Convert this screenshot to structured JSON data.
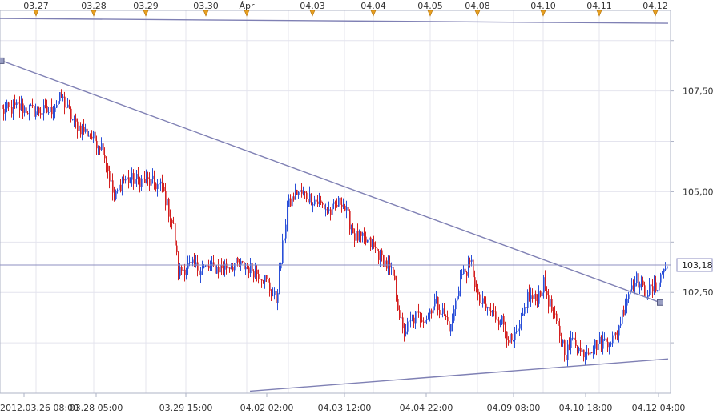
{
  "chart_data": {
    "type": "candlestick",
    "title": "",
    "xlabel": "",
    "ylabel": "",
    "ylim": [
      100.0,
      109.5
    ],
    "colors": {
      "up": "#2a4fd8",
      "down": "#d42020",
      "trendline": "#7f80b4",
      "grid": "#e4e4ee",
      "axis": "#aeb3c6",
      "last_price_line": "#8d8fc0"
    },
    "y_ticks": [
      {
        "value": 107.5,
        "label": "107,50"
      },
      {
        "value": 105.0,
        "label": "105,00"
      },
      {
        "value": 102.5,
        "label": "102,50"
      }
    ],
    "top_date_labels": [
      "03.27",
      "03.28",
      "03.29",
      "03.30",
      "Ápr",
      "04.03",
      "04.04",
      "04.05",
      "04.08",
      "04.10",
      "04.11",
      "04.12"
    ],
    "bottom_time_labels": [
      "2012.03.26 08:00",
      "03.28 05:00",
      "03.29 15:00",
      "04.02 02:00",
      "04.03 12:00",
      "04.04 22:00",
      "04.09 08:00",
      "04.10 18:00",
      "04.12 04:00"
    ],
    "last_price": {
      "value": 103.18,
      "label": "103,18"
    },
    "anchors": [
      {
        "n": 0,
        "v": 107.0
      },
      {
        "n": 10,
        "v": 107.1
      },
      {
        "n": 20,
        "v": 107.0
      },
      {
        "n": 30,
        "v": 107.0
      },
      {
        "n": 37,
        "v": 107.35
      },
      {
        "n": 45,
        "v": 106.7
      },
      {
        "n": 55,
        "v": 106.4
      },
      {
        "n": 63,
        "v": 106.1
      },
      {
        "n": 70,
        "v": 104.8
      },
      {
        "n": 75,
        "v": 105.3
      },
      {
        "n": 85,
        "v": 105.3
      },
      {
        "n": 95,
        "v": 105.2
      },
      {
        "n": 100,
        "v": 105.1
      },
      {
        "n": 107,
        "v": 104.1
      },
      {
        "n": 110,
        "v": 103.0
      },
      {
        "n": 115,
        "v": 103.15
      },
      {
        "n": 125,
        "v": 103.1
      },
      {
        "n": 135,
        "v": 103.1
      },
      {
        "n": 145,
        "v": 103.2
      },
      {
        "n": 155,
        "v": 103.1
      },
      {
        "n": 163,
        "v": 102.9
      },
      {
        "n": 171,
        "v": 102.3
      },
      {
        "n": 178,
        "v": 104.6
      },
      {
        "n": 184,
        "v": 105.0
      },
      {
        "n": 195,
        "v": 104.8
      },
      {
        "n": 205,
        "v": 104.5
      },
      {
        "n": 212,
        "v": 104.8
      },
      {
        "n": 220,
        "v": 103.9
      },
      {
        "n": 230,
        "v": 103.7
      },
      {
        "n": 238,
        "v": 103.3
      },
      {
        "n": 244,
        "v": 102.9
      },
      {
        "n": 250,
        "v": 101.5
      },
      {
        "n": 258,
        "v": 101.9
      },
      {
        "n": 265,
        "v": 101.9
      },
      {
        "n": 270,
        "v": 102.3
      },
      {
        "n": 275,
        "v": 102.0
      },
      {
        "n": 280,
        "v": 101.6
      },
      {
        "n": 286,
        "v": 102.9
      },
      {
        "n": 293,
        "v": 103.2
      },
      {
        "n": 297,
        "v": 102.3
      },
      {
        "n": 305,
        "v": 102.0
      },
      {
        "n": 312,
        "v": 101.8
      },
      {
        "n": 318,
        "v": 101.2
      },
      {
        "n": 323,
        "v": 101.6
      },
      {
        "n": 328,
        "v": 102.4
      },
      {
        "n": 333,
        "v": 102.3
      },
      {
        "n": 338,
        "v": 102.7
      },
      {
        "n": 345,
        "v": 101.8
      },
      {
        "n": 352,
        "v": 101.0
      },
      {
        "n": 357,
        "v": 101.4
      },
      {
        "n": 361,
        "v": 101.0
      },
      {
        "n": 370,
        "v": 101.2
      },
      {
        "n": 383,
        "v": 101.4
      },
      {
        "n": 390,
        "v": 102.4
      },
      {
        "n": 395,
        "v": 102.9
      },
      {
        "n": 401,
        "v": 102.5
      },
      {
        "n": 408,
        "v": 102.6
      },
      {
        "n": 413,
        "v": 103.1
      }
    ]
  }
}
